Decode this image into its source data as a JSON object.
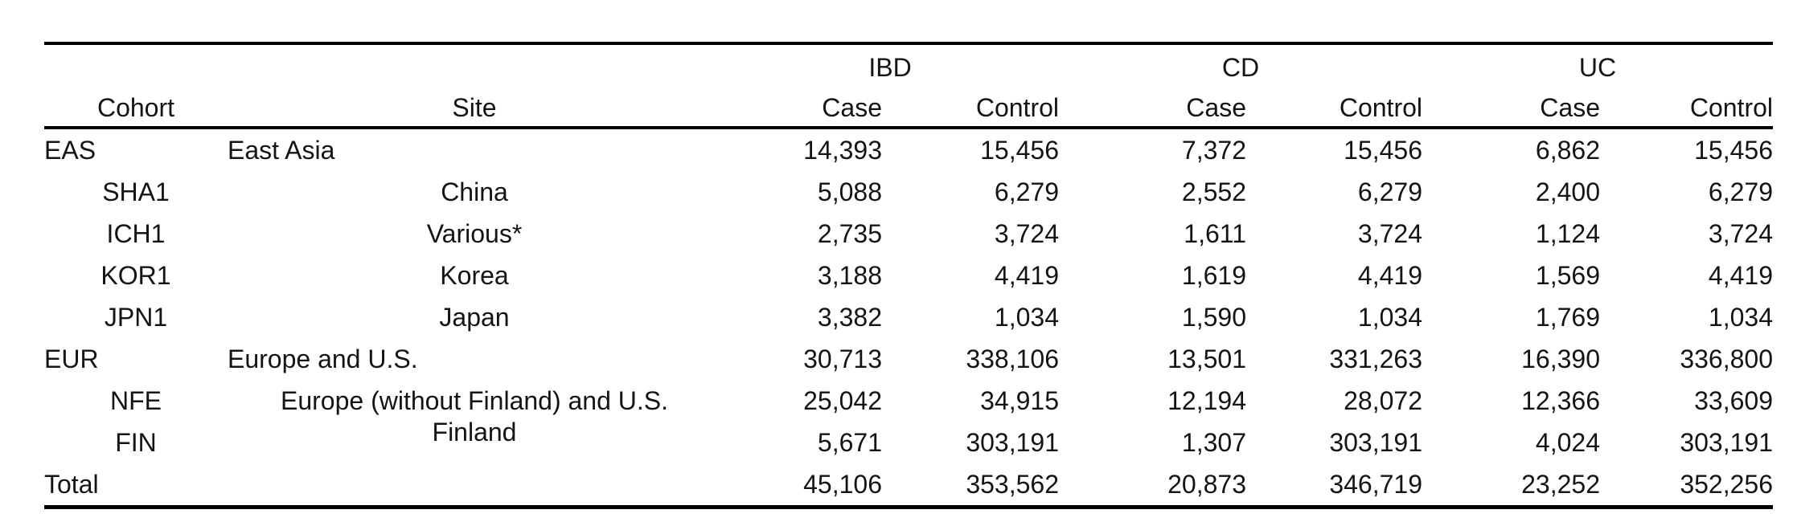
{
  "table": {
    "description_note": "",
    "group_columns": [
      {
        "label": "IBD"
      },
      {
        "label": "CD"
      },
      {
        "label": "UC"
      }
    ],
    "headers": {
      "cohort": "Cohort",
      "site": "Site",
      "case": "Case",
      "control": "Control"
    },
    "rows": [
      {
        "cohort": "EAS",
        "site": "East Asia",
        "indent": false,
        "values": [
          "14,393",
          "15,456",
          "7,372",
          "15,456",
          "6,862",
          "15,456"
        ]
      },
      {
        "cohort": "SHA1",
        "site": "China",
        "indent": true,
        "values": [
          "5,088",
          "6,279",
          "2,552",
          "6,279",
          "2,400",
          "6,279"
        ]
      },
      {
        "cohort": "ICH1",
        "site": "Various*",
        "indent": true,
        "values": [
          "2,735",
          "3,724",
          "1,611",
          "3,724",
          "1,124",
          "3,724"
        ]
      },
      {
        "cohort": "KOR1",
        "site": "Korea",
        "indent": true,
        "values": [
          "3,188",
          "4,419",
          "1,619",
          "4,419",
          "1,569",
          "4,419"
        ]
      },
      {
        "cohort": "JPN1",
        "site": "Japan",
        "indent": true,
        "values": [
          "3,382",
          "1,034",
          "1,590",
          "1,034",
          "1,769",
          "1,034"
        ]
      },
      {
        "cohort": "EUR",
        "site": "Europe and U.S.",
        "indent": false,
        "values": [
          "30,713",
          "338,106",
          "13,501",
          "331,263",
          "16,390",
          "336,800"
        ]
      },
      {
        "cohort": "NFE",
        "site": "Europe (without Finland) and U.S.",
        "indent": true,
        "values": [
          "25,042",
          "34,915",
          "12,194",
          "28,072",
          "12,366",
          "33,609"
        ]
      },
      {
        "cohort": "FIN",
        "site": "Finland",
        "indent": true,
        "values": [
          "5,671",
          "303,191",
          "1,307",
          "303,191",
          "4,024",
          "303,191"
        ]
      },
      {
        "cohort": "Total",
        "site": "",
        "indent": false,
        "values": [
          "45,106",
          "353,562",
          "20,873",
          "346,719",
          "23,252",
          "352,256"
        ]
      }
    ]
  }
}
